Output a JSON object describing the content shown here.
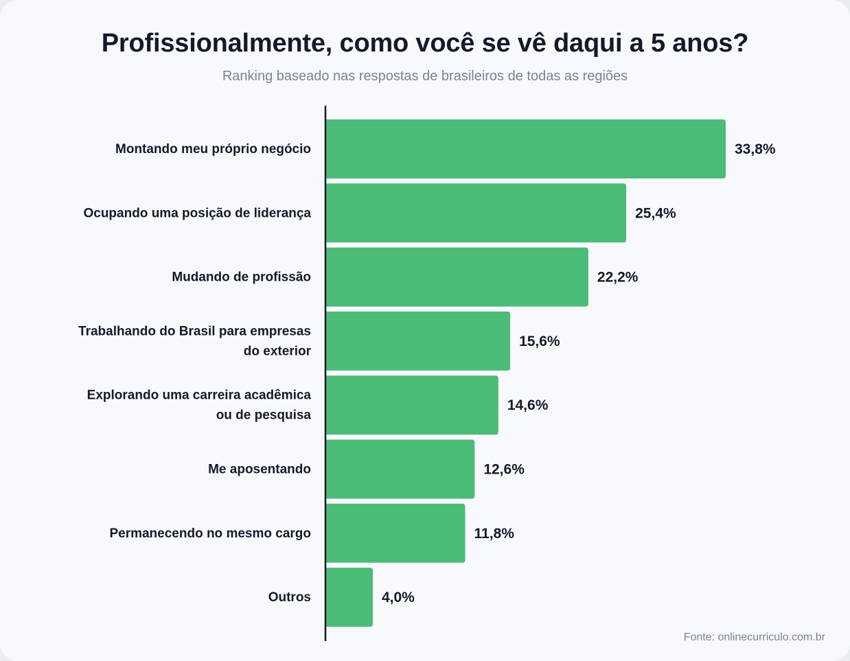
{
  "chart_data": {
    "type": "bar",
    "orientation": "horizontal",
    "title": "Profissionalmente, como você se vê daqui a 5 anos?",
    "subtitle": "Ranking baseado nas respostas de brasileiros de todas as regiões",
    "categories": [
      [
        "Montando meu próprio negócio"
      ],
      [
        "Ocupando uma posição de liderança"
      ],
      [
        "Mudando de profissão"
      ],
      [
        "Trabalhando do Brasil para empresas",
        "do exterior"
      ],
      [
        "Explorando uma carreira acadêmica",
        "ou de pesquisa"
      ],
      [
        "Me aposentando"
      ],
      [
        "Permanecendo no mesmo cargo"
      ],
      [
        "Outros"
      ]
    ],
    "values": [
      33.8,
      25.4,
      22.2,
      15.6,
      14.6,
      12.6,
      11.8,
      4.0
    ],
    "value_labels": [
      "33,8%",
      "25,4%",
      "22,2%",
      "15,6%",
      "14,6%",
      "12,6%",
      "11,8%",
      "4,0%"
    ],
    "bar_color": "#4abc77",
    "grid": false,
    "legend": "none"
  },
  "source": "Fonte: onlinecurriculo.com.br"
}
